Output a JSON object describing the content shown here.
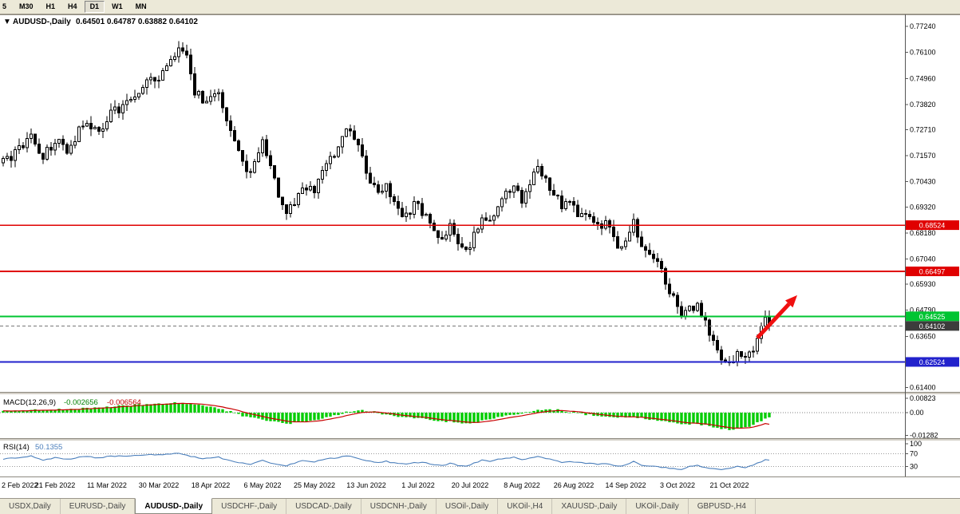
{
  "toolbar": {
    "timeframes": [
      {
        "label": "5",
        "active": false
      },
      {
        "label": "M30",
        "active": false
      },
      {
        "label": "H1",
        "active": false
      },
      {
        "label": "H4",
        "active": false
      },
      {
        "label": "D1",
        "active": true
      },
      {
        "label": "W1",
        "active": false
      },
      {
        "label": "MN",
        "active": false
      }
    ]
  },
  "chart": {
    "header": {
      "symbol": "AUDUSD-,Daily",
      "ohlc": "0.64501 0.64787 0.63882 0.64102"
    }
  },
  "chart_data": [
    {
      "type": "candlestick",
      "title": "AUDUSD-,Daily",
      "ohlc_header": {
        "open": 0.64501,
        "high": 0.64787,
        "low": 0.63882,
        "close": 0.64102
      },
      "y_tick_labels": [
        "0.77240",
        "0.76100",
        "0.74960",
        "0.73820",
        "0.72710",
        "0.71570",
        "0.70430",
        "0.69320",
        "0.68180",
        "0.67040",
        "0.65930",
        "0.64790",
        "0.63650",
        "0.62540",
        "0.61400"
      ],
      "y_range": [
        0.6121,
        0.7777
      ],
      "x_tick_labels": [
        "2 Feb 2022",
        "21 Feb 2022",
        "11 Mar 2022",
        "30 Mar 2022",
        "18 Apr 2022",
        "6 May 2022",
        "25 May 2022",
        "13 Jun 2022",
        "1 Jul 2022",
        "20 Jul 2022",
        "8 Aug 2022",
        "26 Aug 2022",
        "14 Sep 2022",
        "3 Oct 2022",
        "21 Oct 2022"
      ],
      "x_label_step": 13,
      "candle_count": 193,
      "price_path": [
        [
          0,
          0.7125
        ],
        [
          4,
          0.7185
        ],
        [
          7,
          0.724
        ],
        [
          10,
          0.715
        ],
        [
          13,
          0.723
        ],
        [
          16,
          0.717
        ],
        [
          20,
          0.73
        ],
        [
          24,
          0.726
        ],
        [
          27,
          0.7345
        ],
        [
          31,
          0.7385
        ],
        [
          35,
          0.7465
        ],
        [
          40,
          0.752
        ],
        [
          44,
          0.7625
        ],
        [
          46,
          0.758
        ],
        [
          48,
          0.744
        ],
        [
          51,
          0.7395
        ],
        [
          54,
          0.7445
        ],
        [
          57,
          0.725
        ],
        [
          60,
          0.713
        ],
        [
          62,
          0.7065
        ],
        [
          65,
          0.7245
        ],
        [
          67,
          0.711
        ],
        [
          69,
          0.699
        ],
        [
          71,
          0.6885
        ],
        [
          73,
          0.696
        ],
        [
          75,
          0.7035
        ],
        [
          78,
          0.7
        ],
        [
          80,
          0.7095
        ],
        [
          83,
          0.716
        ],
        [
          86,
          0.7265
        ],
        [
          88,
          0.723
        ],
        [
          90,
          0.714
        ],
        [
          92,
          0.705
        ],
        [
          94,
          0.6995
        ],
        [
          96,
          0.7025
        ],
        [
          98,
          0.6935
        ],
        [
          101,
          0.6895
        ],
        [
          103,
          0.6945
        ],
        [
          106,
          0.69
        ],
        [
          108,
          0.6825
        ],
        [
          110,
          0.679
        ],
        [
          112,
          0.6845
        ],
        [
          114,
          0.676
        ],
        [
          116,
          0.6735
        ],
        [
          118,
          0.6805
        ],
        [
          120,
          0.689
        ],
        [
          122,
          0.687
        ],
        [
          124,
          0.6945
        ],
        [
          126,
          0.698
        ],
        [
          128,
          0.7025
        ],
        [
          130,
          0.6965
        ],
        [
          132,
          0.704
        ],
        [
          134,
          0.7105
        ],
        [
          137,
          0.702
        ],
        [
          140,
          0.693
        ],
        [
          142,
          0.6955
        ],
        [
          144,
          0.69
        ],
        [
          147,
          0.6885
        ],
        [
          149,
          0.684
        ],
        [
          151,
          0.6855
        ],
        [
          153,
          0.6795
        ],
        [
          155,
          0.675
        ],
        [
          157,
          0.682
        ],
        [
          158,
          0.688
        ],
        [
          160,
          0.6745
        ],
        [
          162,
          0.671
        ],
        [
          164,
          0.669
        ],
        [
          166,
          0.66
        ],
        [
          168,
          0.653
        ],
        [
          170,
          0.6445
        ],
        [
          172,
          0.648
        ],
        [
          174,
          0.651
        ],
        [
          176,
          0.642
        ],
        [
          178,
          0.633
        ],
        [
          180,
          0.626
        ],
        [
          182,
          0.6245
        ],
        [
          184,
          0.629
        ],
        [
          186,
          0.626
        ],
        [
          188,
          0.632
        ],
        [
          190,
          0.6395
        ],
        [
          191,
          0.6455
        ],
        [
          192,
          0.641
        ]
      ],
      "hlines": [
        {
          "value": 0.68524,
          "label": "0.68524",
          "color": "#e00000",
          "kind": "resistance"
        },
        {
          "value": 0.66497,
          "label": "0.66497",
          "color": "#e00000",
          "kind": "resistance"
        },
        {
          "value": 0.64525,
          "label": "0.64525",
          "color": "#00c432",
          "kind": "resistance"
        },
        {
          "value": 0.62524,
          "label": "0.62524",
          "color": "#2222cc",
          "kind": "support"
        }
      ],
      "current_price": {
        "value": 0.64102,
        "label": "0.64102",
        "box_color": "#3c3c3c",
        "line_color": "#787878"
      },
      "arrow": {
        "from_index": 189,
        "from_price": 0.6358,
        "to_index": 199,
        "to_price": 0.6545,
        "color": "#f01010"
      },
      "candle_style": {
        "up_fill": "#ffffff",
        "down_fill": "#000000",
        "outline": "#000000"
      }
    },
    {
      "type": "bar",
      "indicator": "MACD",
      "label": "MACD(12,26,9)",
      "current_values": {
        "macd": "-0.002656",
        "signal": "-0.006564"
      },
      "y_tick_labels": [
        "0.00823",
        "0.00",
        "-0.01282"
      ],
      "y_range": [
        -0.014,
        0.0095
      ],
      "path": [
        [
          0,
          0.0006
        ],
        [
          8,
          0.0016
        ],
        [
          16,
          0.002
        ],
        [
          24,
          0.003
        ],
        [
          32,
          0.0042
        ],
        [
          40,
          0.0052
        ],
        [
          44,
          0.0058
        ],
        [
          48,
          0.0046
        ],
        [
          53,
          0.0028
        ],
        [
          57,
          0.0006
        ],
        [
          60,
          -0.0018
        ],
        [
          64,
          -0.0034
        ],
        [
          68,
          -0.0052
        ],
        [
          71,
          -0.0062
        ],
        [
          75,
          -0.0052
        ],
        [
          79,
          -0.0036
        ],
        [
          83,
          -0.0016
        ],
        [
          86,
          0.0004
        ],
        [
          89,
          0.0014
        ],
        [
          92,
          0.001
        ],
        [
          95,
          -0.0006
        ],
        [
          99,
          -0.0022
        ],
        [
          103,
          -0.003
        ],
        [
          107,
          -0.004
        ],
        [
          111,
          -0.005
        ],
        [
          114,
          -0.0056
        ],
        [
          117,
          -0.0058
        ],
        [
          120,
          -0.0046
        ],
        [
          124,
          -0.0028
        ],
        [
          128,
          -0.001
        ],
        [
          132,
          0.0006
        ],
        [
          136,
          0.002
        ],
        [
          139,
          0.0016
        ],
        [
          142,
          0.0004
        ],
        [
          146,
          -0.001
        ],
        [
          150,
          -0.002
        ],
        [
          154,
          -0.0028
        ],
        [
          158,
          -0.0026
        ],
        [
          161,
          -0.0034
        ],
        [
          164,
          -0.0044
        ],
        [
          167,
          -0.0056
        ],
        [
          170,
          -0.0066
        ],
        [
          173,
          -0.0062
        ],
        [
          176,
          -0.0072
        ],
        [
          179,
          -0.0086
        ],
        [
          182,
          -0.0096
        ],
        [
          185,
          -0.009
        ],
        [
          187,
          -0.0078
        ],
        [
          189,
          -0.0058
        ],
        [
          191,
          -0.0036
        ],
        [
          192,
          -0.002656
        ]
      ],
      "colors": {
        "histogram": "#00cc00",
        "signal": "#c80000"
      }
    },
    {
      "type": "line",
      "indicator": "RSI",
      "label": "RSI(14)",
      "current_value": "50.1355",
      "y_tick_labels": [
        "100",
        "70",
        "30"
      ],
      "dashed_levels": [
        70,
        30
      ],
      "y_range": [
        0,
        110
      ],
      "path": [
        [
          0,
          54
        ],
        [
          4,
          58
        ],
        [
          7,
          63
        ],
        [
          10,
          50
        ],
        [
          13,
          58
        ],
        [
          16,
          52
        ],
        [
          20,
          62
        ],
        [
          24,
          57
        ],
        [
          27,
          62
        ],
        [
          32,
          63
        ],
        [
          36,
          66
        ],
        [
          40,
          67
        ],
        [
          44,
          71
        ],
        [
          47,
          62
        ],
        [
          50,
          55
        ],
        [
          54,
          59
        ],
        [
          57,
          47
        ],
        [
          60,
          41
        ],
        [
          62,
          38
        ],
        [
          65,
          49
        ],
        [
          67,
          42
        ],
        [
          69,
          36
        ],
        [
          71,
          32
        ],
        [
          73,
          41
        ],
        [
          75,
          48
        ],
        [
          78,
          45
        ],
        [
          80,
          52
        ],
        [
          83,
          56
        ],
        [
          86,
          63
        ],
        [
          88,
          60
        ],
        [
          90,
          52
        ],
        [
          92,
          46
        ],
        [
          94,
          43
        ],
        [
          96,
          47
        ],
        [
          98,
          41
        ],
        [
          101,
          39
        ],
        [
          103,
          44
        ],
        [
          106,
          41
        ],
        [
          108,
          36
        ],
        [
          110,
          34
        ],
        [
          112,
          40
        ],
        [
          114,
          34
        ],
        [
          116,
          32
        ],
        [
          118,
          41
        ],
        [
          120,
          50
        ],
        [
          122,
          47
        ],
        [
          124,
          53
        ],
        [
          126,
          56
        ],
        [
          128,
          60
        ],
        [
          130,
          52
        ],
        [
          132,
          57
        ],
        [
          134,
          62
        ],
        [
          137,
          53
        ],
        [
          140,
          44
        ],
        [
          142,
          47
        ],
        [
          144,
          42
        ],
        [
          147,
          41
        ],
        [
          149,
          37
        ],
        [
          151,
          39
        ],
        [
          153,
          34
        ],
        [
          155,
          31
        ],
        [
          157,
          40
        ],
        [
          158,
          46
        ],
        [
          160,
          35
        ],
        [
          162,
          33
        ],
        [
          164,
          31
        ],
        [
          166,
          27
        ],
        [
          168,
          25
        ],
        [
          170,
          22
        ],
        [
          172,
          30
        ],
        [
          174,
          35
        ],
        [
          176,
          27
        ],
        [
          178,
          23
        ],
        [
          180,
          22
        ],
        [
          182,
          24
        ],
        [
          184,
          30
        ],
        [
          186,
          27
        ],
        [
          188,
          35
        ],
        [
          190,
          45
        ],
        [
          191,
          52
        ],
        [
          192,
          50.1355
        ]
      ],
      "color": "#4a7ebb"
    }
  ],
  "tabs": {
    "items": [
      {
        "label": "USDX,Daily",
        "active": false
      },
      {
        "label": "EURUSD-,Daily",
        "active": false
      },
      {
        "label": "AUDUSD-,Daily",
        "active": true
      },
      {
        "label": "USDCHF-,Daily",
        "active": false
      },
      {
        "label": "USDCAD-,Daily",
        "active": false
      },
      {
        "label": "USDCNH-,Daily",
        "active": false
      },
      {
        "label": "USOil-,Daily",
        "active": false
      },
      {
        "label": "UKOil-,H4",
        "active": false
      },
      {
        "label": "XAUUSD-,Daily",
        "active": false
      },
      {
        "label": "UKOil-,Daily",
        "active": false
      },
      {
        "label": "GBPUSD-,H4",
        "active": false
      }
    ]
  }
}
